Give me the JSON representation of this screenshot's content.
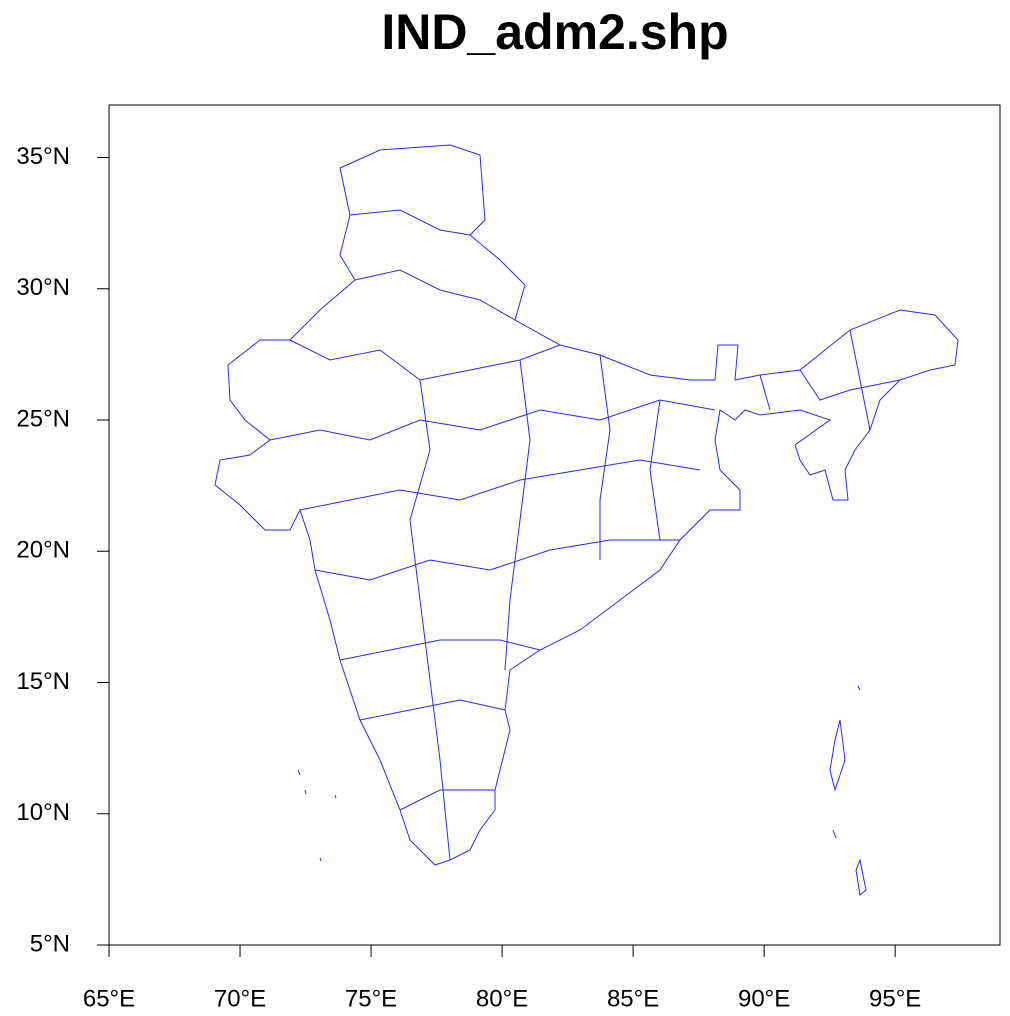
{
  "map": {
    "title": "IND_adm2.shp",
    "xlim": [
      65,
      99
    ],
    "ylim": [
      5,
      37
    ],
    "xticks": [
      {
        "value": 65,
        "label": "65°E"
      },
      {
        "value": 70,
        "label": "70°E"
      },
      {
        "value": 75,
        "label": "75°E"
      },
      {
        "value": 80,
        "label": "80°E"
      },
      {
        "value": 85,
        "label": "85°E"
      },
      {
        "value": 90,
        "label": "90°E"
      },
      {
        "value": 95,
        "label": "95°E"
      }
    ],
    "yticks": [
      {
        "value": 5,
        "label": "5°N"
      },
      {
        "value": 10,
        "label": "10°N"
      },
      {
        "value": 15,
        "label": "15°N"
      },
      {
        "value": 20,
        "label": "20°N"
      },
      {
        "value": 25,
        "label": "25°N"
      },
      {
        "value": 30,
        "label": "30°N"
      },
      {
        "value": 35,
        "label": "35°N"
      }
    ]
  }
}
